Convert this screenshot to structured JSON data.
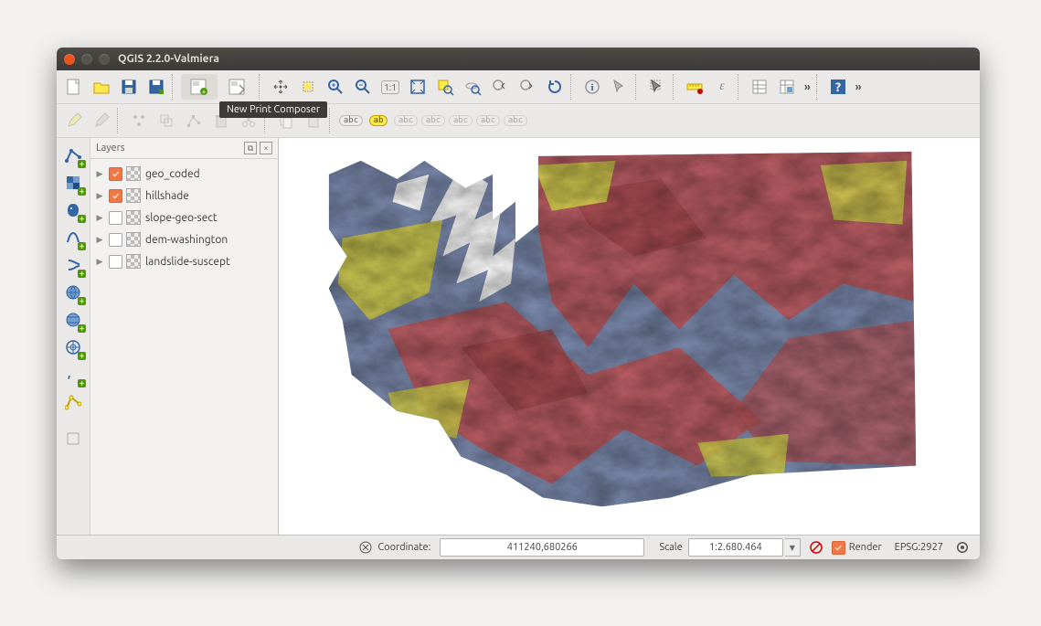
{
  "window": {
    "title": "QGIS 2.2.0-Valmiera",
    "tooltip": "New Print Composer"
  },
  "panel": {
    "title": "Layers"
  },
  "layers": [
    {
      "label": "geo_coded",
      "checked": true
    },
    {
      "label": "hillshade",
      "checked": true
    },
    {
      "label": "slope-geo-sect",
      "checked": false
    },
    {
      "label": "dem-washington",
      "checked": false
    },
    {
      "label": "landslide-suscept",
      "checked": false
    }
  ],
  "status": {
    "coord_label": "Coordinate:",
    "coord_value": "411240,680266",
    "scale_label": "Scale",
    "scale_value": "1:2.680.464",
    "render_label": "Render",
    "epsg_label": "EPSG:2927"
  },
  "map_style": {
    "background": "#ffffff",
    "land_base": "#7d8cb0",
    "overlay_red": "#c15a5e",
    "overlay_red_dark": "#a84a4e",
    "overlay_yellow": "#d3cd4e",
    "water": "#ffffff",
    "shade_opacity": 0.35
  },
  "palette": {
    "titlebar_top": "#4c4b46",
    "titlebar_bottom": "#3c3b37",
    "close_btn": "#e95420",
    "panel_bg": "#f2f1f0",
    "toolbar_bg": "#ebe9e7",
    "checkbox_on": "#f07746"
  }
}
